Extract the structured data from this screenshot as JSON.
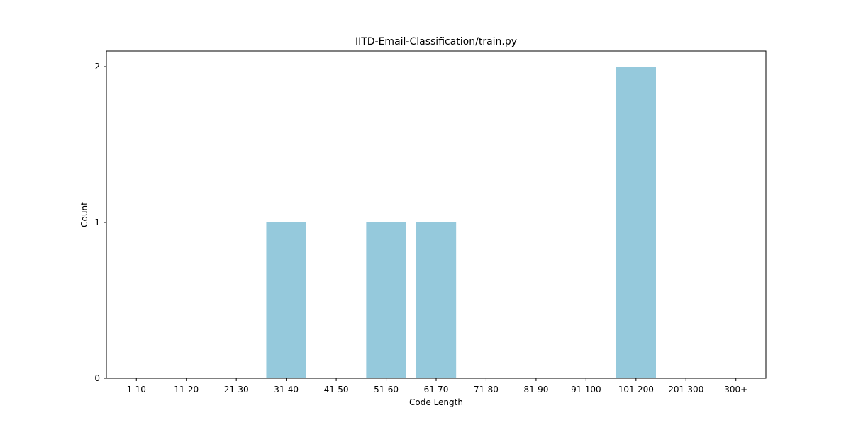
{
  "chart_data": {
    "type": "bar",
    "title": "IITD-Email-Classification/train.py",
    "xlabel": "Code Length",
    "ylabel": "Count",
    "categories": [
      "1-10",
      "11-20",
      "21-30",
      "31-40",
      "41-50",
      "51-60",
      "61-70",
      "71-80",
      "81-90",
      "91-100",
      "101-200",
      "201-300",
      "300+"
    ],
    "values": [
      0,
      0,
      0,
      1,
      0,
      1,
      1,
      0,
      0,
      0,
      2,
      0,
      0
    ],
    "ylim": [
      0,
      2.1
    ],
    "yticks": [
      "0",
      "1",
      "2"
    ],
    "bar_color": "#95c9dc",
    "grid": false,
    "legend": "none"
  }
}
